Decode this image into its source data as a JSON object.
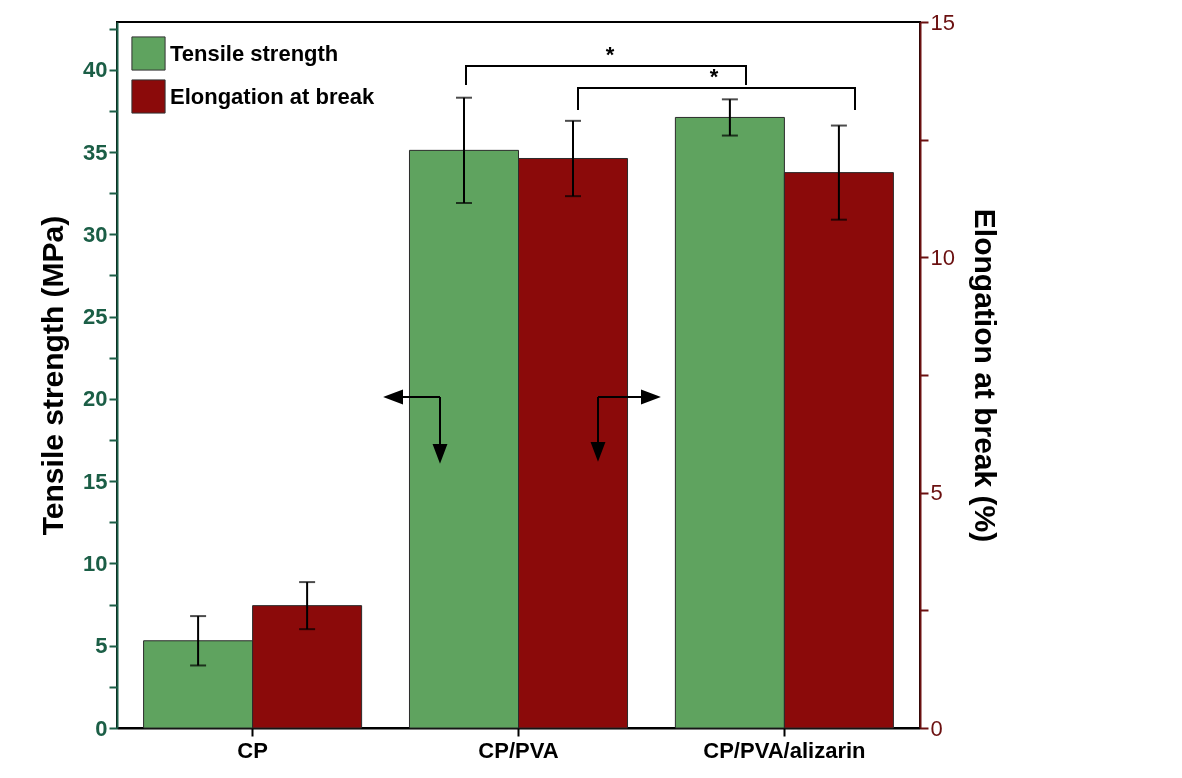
{
  "chart_data": {
    "type": "bar",
    "ylabel": "Tensile strength (MPa)",
    "y2label": "Elongation at break (%)",
    "categories": [
      "CP",
      "CP/PVA",
      "CP/PVA/alizarin"
    ],
    "series": [
      {
        "name": "Tensile strength",
        "color": "#5fa35f",
        "values": [
          5.3,
          35.1,
          37.1
        ],
        "errors": [
          1.5,
          3.2,
          1.1
        ]
      },
      {
        "name": "Elongation at break",
        "color": "#8b0a0a",
        "axis": "y2",
        "values": [
          2.6,
          12.1,
          11.8
        ],
        "errors": [
          0.5,
          0.8,
          1.0
        ]
      }
    ],
    "ylim": [
      0,
      42.9
    ],
    "yticks": [
      0,
      {
        "value": 2.5,
        "label": null
      },
      5,
      {
        "value": 7.5,
        "label": null
      },
      10,
      {
        "value": 12.5,
        "label": null
      },
      15,
      {
        "value": 17.5,
        "label": null
      },
      20,
      {
        "value": 22.5,
        "label": null
      },
      25,
      {
        "value": 27.5,
        "label": null
      },
      30,
      {
        "value": 32.5,
        "label": null
      },
      35,
      {
        "value": 37.5,
        "label": null
      },
      40,
      {
        "value": 42.5,
        "label": null
      }
    ],
    "y2lim": [
      0,
      15
    ],
    "y2ticks": [
      0,
      {
        "value": 2.5,
        "label": null
      },
      5,
      {
        "value": 7.5,
        "label": null
      },
      10,
      {
        "value": 12.5,
        "label": null
      },
      15
    ],
    "annotations": [
      "*",
      "*"
    ],
    "legend": "top left",
    "grid": false
  }
}
